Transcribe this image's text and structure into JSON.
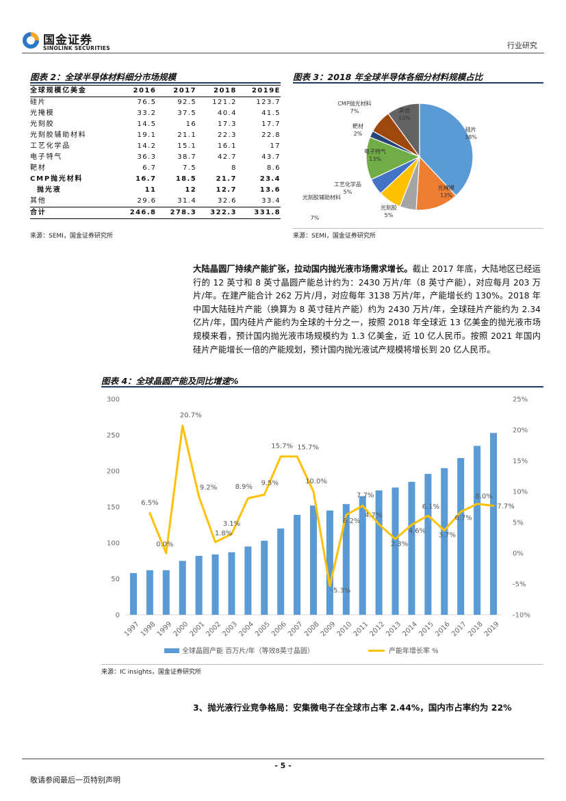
{
  "header": {
    "brand_cn": "国金证券",
    "brand_en": "SINOLINK SECURITIES",
    "section_label": "行业研究",
    "colors": {
      "logo_blue": "#2a78c6",
      "logo_orange": "#f5a623"
    }
  },
  "fig2": {
    "title": "图表 2：全球半导体材料细分市场规模",
    "headers": [
      "全球规模亿美金",
      "2016",
      "2017",
      "2018",
      "2019E"
    ],
    "rows": [
      {
        "name": "硅片",
        "v": [
          "76.5",
          "92.5",
          "121.2",
          "123.7"
        ],
        "bold": false,
        "indent": false
      },
      {
        "name": "光掩模",
        "v": [
          "33.2",
          "37.5",
          "40.4",
          "41.5"
        ],
        "bold": false,
        "indent": false
      },
      {
        "name": "光刻胶",
        "v": [
          "14.5",
          "16",
          "17.3",
          "17.7"
        ],
        "bold": false,
        "indent": false
      },
      {
        "name": "光刻胶辅助材料",
        "v": [
          "19.1",
          "21.1",
          "22.3",
          "22.8"
        ],
        "bold": false,
        "indent": false
      },
      {
        "name": "工艺化学品",
        "v": [
          "14.2",
          "15.1",
          "16.1",
          "17"
        ],
        "bold": false,
        "indent": false
      },
      {
        "name": "电子特气",
        "v": [
          "36.3",
          "38.7",
          "42.7",
          "43.7"
        ],
        "bold": false,
        "indent": false
      },
      {
        "name": "靶材",
        "v": [
          "6.7",
          "7.5",
          "8",
          "8.6"
        ],
        "bold": false,
        "indent": false
      },
      {
        "name": "CMP抛光材料",
        "v": [
          "16.7",
          "18.5",
          "21.7",
          "23.4"
        ],
        "bold": true,
        "indent": false
      },
      {
        "name": "抛光液",
        "v": [
          "11",
          "12",
          "12.7",
          "13.6"
        ],
        "bold": true,
        "indent": true
      },
      {
        "name": "其他",
        "v": [
          "29.6",
          "31.4",
          "32.6",
          "33.4"
        ],
        "bold": false,
        "indent": false
      }
    ],
    "total": {
      "name": "合计",
      "v": [
        "246.8",
        "278.3",
        "322.3",
        "331.8"
      ]
    },
    "source": "来源：SEMI，国金证券研究所"
  },
  "fig3": {
    "title": "图表 3：2018 年全球半导体各细分材料规模占比",
    "source": "来源：SEMI，国金证券研究所",
    "chart_data": {
      "type": "pie",
      "slices": [
        {
          "name": "硅片",
          "pct": "38%",
          "value": 38,
          "color": "#5b9bd5"
        },
        {
          "name": "光掩模",
          "pct": "13%",
          "value": 13,
          "color": "#ed7d31"
        },
        {
          "name": "光刻胶",
          "pct": "5%",
          "value": 5,
          "color": "#a5a5a5"
        },
        {
          "name": "光刻胶辅助材料",
          "pct": "7%",
          "value": 7,
          "color": "#ffc000"
        },
        {
          "name": "工艺化学品",
          "pct": "5%",
          "value": 5,
          "color": "#4472c4"
        },
        {
          "name": "电子特气",
          "pct": "13%",
          "value": 13,
          "color": "#70ad47"
        },
        {
          "name": "靶材",
          "pct": "2%",
          "value": 2,
          "color": "#264478"
        },
        {
          "name": "CMP抛光材料",
          "pct": "7%",
          "value": 7,
          "color": "#9e480e"
        },
        {
          "name": "其他",
          "pct": "10%",
          "value": 10,
          "color": "#636363"
        }
      ]
    }
  },
  "paragraph": {
    "lead": "大陆晶圆厂持续产能扩张，拉动国内抛光液市场需求增长。",
    "body": "截止 2017 年底，大陆地区已经运行的 12 英寸和 8 英寸晶圆产能总计约为：2430 万片/年（8 英寸产能），对应每月 203 万片/年。在建产能合计 262 万片/月，对应每年 3138 万片/年，产能增长约 130%。2018 年中国大陆硅片产能（换算为 8 英寸硅片产能）约为 2430 万片/年，全球硅片产能约为 2.34 亿片/年，国内硅片产能约为全球的十分之一，按照 2018 年全球近 13 亿美金的抛光液市场规模来看，预计国内抛光液市场规模约为 1.3 亿美金，近 10 亿人民币。按照 2021 年国内硅片产能增长一倍的产能规划，预计国内抛光液试产规模将增长到 20 亿人民币。"
  },
  "fig4": {
    "title": "图表 4：全球晶圆产能及同比增速%",
    "source": "来源：IC insights，国金证券研究所",
    "chart_data": {
      "type": "bar",
      "categories": [
        "1997",
        "1998",
        "1999",
        "2000",
        "2001",
        "2002",
        "2003",
        "2004",
        "2005",
        "2006",
        "2007",
        "2008",
        "2009",
        "2010",
        "2011",
        "2012",
        "2013",
        "2014",
        "2015",
        "2016",
        "2017",
        "2018",
        "2019"
      ],
      "series": [
        {
          "name": "全球晶圆产能 百万片/年（等效8英寸晶圆）",
          "type": "bar",
          "axis": "left",
          "color": "#5b9bd5",
          "values": [
            58,
            62,
            62,
            75,
            82,
            84,
            87,
            95,
            103,
            120,
            139,
            152,
            145,
            154,
            165,
            173,
            177,
            185,
            196,
            204,
            218,
            235,
            253
          ]
        },
        {
          "name": "产能年增长率 %",
          "type": "line",
          "axis": "right",
          "color": "#ffc000",
          "values": [
            6.5,
            0.0,
            20.7,
            9.2,
            1.8,
            3.1,
            8.9,
            9.5,
            15.7,
            15.7,
            10.0,
            -5.3,
            6.2,
            7.7,
            4.7,
            2.3,
            4.6,
            6.1,
            3.7,
            6.7,
            8.0,
            7.7
          ],
          "x": [
            "1998",
            "1999",
            "2000",
            "2001",
            "2002",
            "2003",
            "2004",
            "2005",
            "2006",
            "2007",
            "2008",
            "2009",
            "2010",
            "2011",
            "2012",
            "2013",
            "2014",
            "2015",
            "2016",
            "2017",
            "2018",
            "2019"
          ],
          "labels": [
            "6.5%",
            "0.0%",
            "20.7%",
            "9.2%",
            "1.8%",
            "3.1%",
            "8.9%",
            "9.5%",
            "15.7%",
            "15.7%",
            "10.0%",
            "-5.3%",
            "6.2%",
            "7.7%",
            "4.7%",
            "2.3%",
            "4.6%",
            "6.1%",
            "3.7%",
            "6.7%",
            "8.0%",
            "7.7%"
          ]
        }
      ],
      "ylim_left": [
        0,
        300
      ],
      "yticks_left": [
        "0",
        "50",
        "100",
        "150",
        "200",
        "250",
        "300"
      ],
      "ylim_right": [
        -10,
        25
      ],
      "yticks_right": [
        "-10%",
        "-5%",
        "0%",
        "5%",
        "10%",
        "15%",
        "20%",
        "25%"
      ],
      "legend_position": "bottom"
    }
  },
  "section3": "3、抛光液行业竞争格局：安集微电子在全球市占率 2.44%，国内市占率约为 22%",
  "footer": {
    "page": "- 5 -",
    "disclaimer": "敬请参阅最后一页特别声明"
  }
}
